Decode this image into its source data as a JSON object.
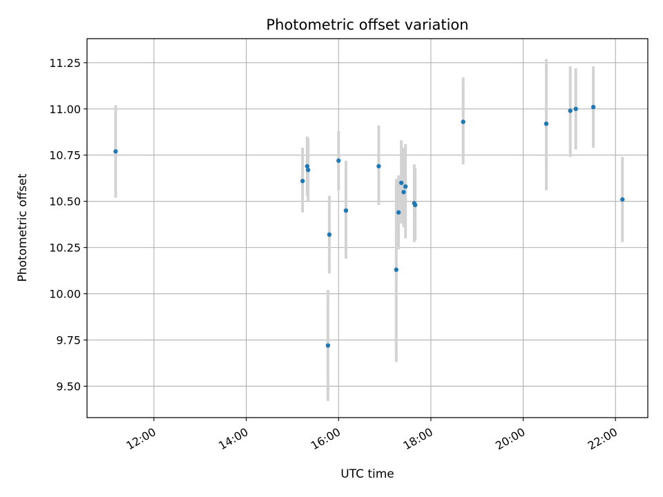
{
  "chart_data": {
    "type": "scatter",
    "title": "Photometric offset variation",
    "xlabel": "UTC time",
    "ylabel": "Photometric offset",
    "x_unit": "hours UTC",
    "xlim": [
      10.55,
      22.7
    ],
    "ylim": [
      9.33,
      11.38
    ],
    "x_ticks": [
      {
        "value": 12,
        "label": "12:00"
      },
      {
        "value": 14,
        "label": "14:00"
      },
      {
        "value": 16,
        "label": "16:00"
      },
      {
        "value": 18,
        "label": "18:00"
      },
      {
        "value": 20,
        "label": "20:00"
      },
      {
        "value": 22,
        "label": "22:00"
      }
    ],
    "y_ticks": [
      {
        "value": 9.5,
        "label": "9.50"
      },
      {
        "value": 9.75,
        "label": "9.75"
      },
      {
        "value": 10.0,
        "label": "10.00"
      },
      {
        "value": 10.25,
        "label": "10.25"
      },
      {
        "value": 10.5,
        "label": "10.50"
      },
      {
        "value": 10.75,
        "label": "10.75"
      },
      {
        "value": 11.0,
        "label": "11.00"
      },
      {
        "value": 11.25,
        "label": "11.25"
      }
    ],
    "grid": true,
    "point_color": "#1f77b4",
    "errorbar_color": "#d3d3d3",
    "points": [
      {
        "x": 11.17,
        "y": 10.77,
        "ylow": 10.52,
        "yhigh": 11.02
      },
      {
        "x": 15.22,
        "y": 10.61,
        "ylow": 10.44,
        "yhigh": 10.79
      },
      {
        "x": 15.32,
        "y": 10.69,
        "ylow": 10.53,
        "yhigh": 10.85
      },
      {
        "x": 15.34,
        "y": 10.67,
        "ylow": 10.5,
        "yhigh": 10.84
      },
      {
        "x": 15.77,
        "y": 9.72,
        "ylow": 9.42,
        "yhigh": 10.02
      },
      {
        "x": 15.8,
        "y": 10.32,
        "ylow": 10.11,
        "yhigh": 10.53
      },
      {
        "x": 16.0,
        "y": 10.72,
        "ylow": 10.56,
        "yhigh": 10.88
      },
      {
        "x": 16.16,
        "y": 10.45,
        "ylow": 10.19,
        "yhigh": 10.72
      },
      {
        "x": 16.87,
        "y": 10.69,
        "ylow": 10.48,
        "yhigh": 10.91
      },
      {
        "x": 17.25,
        "y": 10.13,
        "ylow": 9.63,
        "yhigh": 10.62
      },
      {
        "x": 17.3,
        "y": 10.44,
        "ylow": 10.24,
        "yhigh": 10.64
      },
      {
        "x": 17.36,
        "y": 10.6,
        "ylow": 10.38,
        "yhigh": 10.83
      },
      {
        "x": 17.41,
        "y": 10.55,
        "ylow": 10.36,
        "yhigh": 10.79
      },
      {
        "x": 17.45,
        "y": 10.58,
        "ylow": 10.3,
        "yhigh": 10.81
      },
      {
        "x": 17.64,
        "y": 10.49,
        "ylow": 10.28,
        "yhigh": 10.7
      },
      {
        "x": 17.66,
        "y": 10.48,
        "ylow": 10.29,
        "yhigh": 10.68
      },
      {
        "x": 18.7,
        "y": 10.93,
        "ylow": 10.7,
        "yhigh": 11.17
      },
      {
        "x": 20.5,
        "y": 10.92,
        "ylow": 10.56,
        "yhigh": 11.27
      },
      {
        "x": 21.02,
        "y": 10.99,
        "ylow": 10.74,
        "yhigh": 11.23
      },
      {
        "x": 21.14,
        "y": 11.0,
        "ylow": 10.78,
        "yhigh": 11.22
      },
      {
        "x": 21.52,
        "y": 11.01,
        "ylow": 10.79,
        "yhigh": 11.23
      },
      {
        "x": 22.15,
        "y": 10.51,
        "ylow": 10.28,
        "yhigh": 10.74
      }
    ]
  }
}
